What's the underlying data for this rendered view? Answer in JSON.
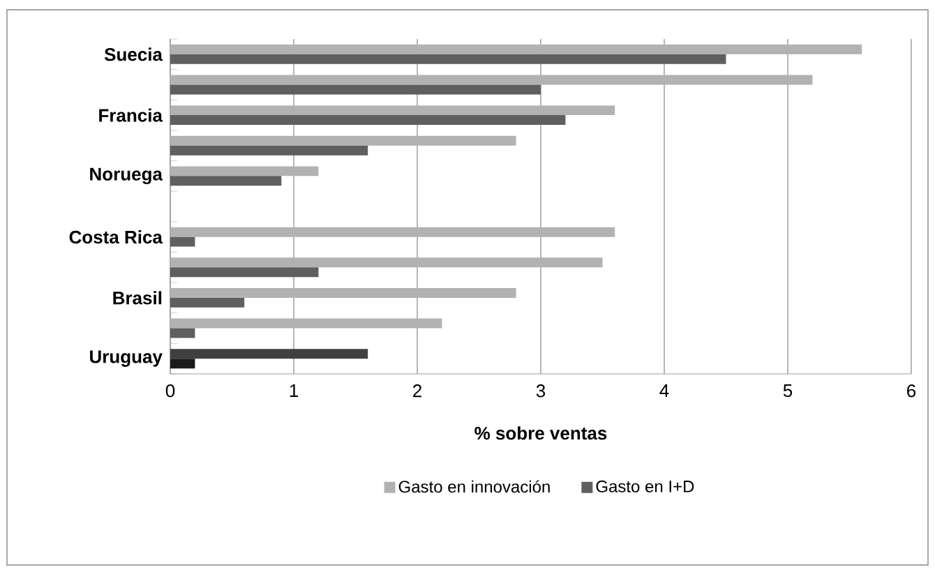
{
  "chart_data": {
    "type": "bar",
    "orientation": "horizontal",
    "xlabel": "% sobre ventas",
    "categories": [
      "Suecia",
      null,
      "Francia",
      null,
      "Noruega",
      null,
      "Costa Rica",
      null,
      "Brasil",
      null,
      "Uruguay"
    ],
    "series": [
      {
        "name": "Gasto en innovación",
        "color": "#b2b2b2",
        "colors": [
          "#b2b2b2",
          "#b2b2b2",
          "#b2b2b2",
          "#b2b2b2",
          "#b2b2b2",
          "#b2b2b2",
          "#b2b2b2",
          "#b2b2b2",
          "#b2b2b2",
          "#b2b2b2",
          "#404040"
        ],
        "values": [
          5.6,
          5.2,
          3.6,
          2.8,
          1.2,
          null,
          3.6,
          3.5,
          2.8,
          2.2,
          1.6
        ]
      },
      {
        "name": "Gasto en I+D",
        "color": "#5f5f5f",
        "colors": [
          "#5f5f5f",
          "#5f5f5f",
          "#5f5f5f",
          "#5f5f5f",
          "#5f5f5f",
          "#5f5f5f",
          "#5f5f5f",
          "#5f5f5f",
          "#5f5f5f",
          "#5f5f5f",
          "#1a1a1a"
        ],
        "values": [
          4.5,
          3.0,
          3.2,
          1.6,
          0.9,
          null,
          0.2,
          1.2,
          0.6,
          0.2,
          0.2
        ]
      }
    ],
    "xlim": [
      0,
      6
    ],
    "xticks": [
      0,
      1,
      2,
      3,
      4,
      5,
      6
    ],
    "grid": "x",
    "legend": "bottom"
  }
}
